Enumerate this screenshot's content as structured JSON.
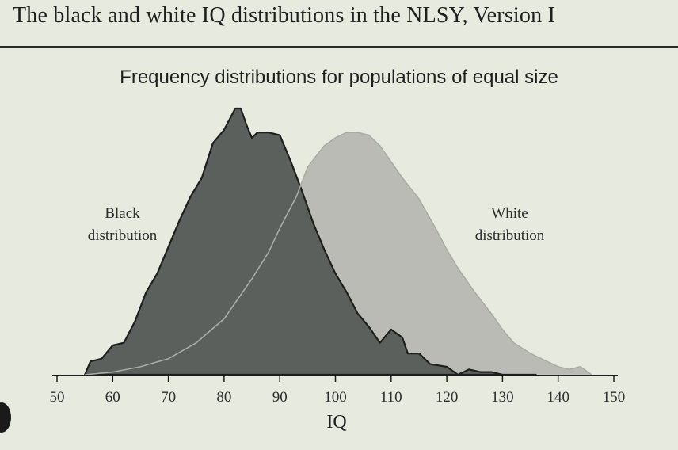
{
  "header": {
    "title": "The black and white IQ distributions in the NLSY, Version I"
  },
  "chart_data": {
    "type": "area",
    "title": "Frequency distributions for populations of equal size",
    "xlabel": "IQ",
    "ylabel": "",
    "xlim": [
      50,
      150
    ],
    "ylim": [
      0,
      1
    ],
    "x_ticks": [
      "50",
      "60",
      "70",
      "80",
      "90",
      "100",
      "110",
      "120",
      "130",
      "140",
      "150"
    ],
    "grid": false,
    "legend": "inline labels",
    "series": [
      {
        "name": "White distribution",
        "label_lines": [
          "White",
          "distribution"
        ],
        "color": "#b9bbb4",
        "x": [
          55,
          60,
          65,
          70,
          75,
          80,
          85,
          88,
          90,
          93,
          95,
          98,
          100,
          102,
          104,
          106,
          108,
          110,
          112,
          115,
          118,
          120,
          122,
          125,
          128,
          130,
          132,
          135,
          138,
          140,
          142,
          144,
          146
        ],
        "values": [
          0.0,
          0.01,
          0.03,
          0.06,
          0.12,
          0.21,
          0.36,
          0.46,
          0.55,
          0.67,
          0.78,
          0.86,
          0.89,
          0.91,
          0.91,
          0.9,
          0.86,
          0.8,
          0.74,
          0.66,
          0.55,
          0.47,
          0.4,
          0.31,
          0.23,
          0.17,
          0.12,
          0.08,
          0.05,
          0.03,
          0.02,
          0.03,
          0.0
        ]
      },
      {
        "name": "Black distribution",
        "label_lines": [
          "Black",
          "distribution"
        ],
        "color": "#5c605c",
        "x": [
          55,
          56,
          58,
          60,
          62,
          64,
          66,
          68,
          70,
          72,
          74,
          76,
          78,
          80,
          82,
          83,
          84,
          85,
          86,
          88,
          90,
          92,
          94,
          96,
          98,
          100,
          102,
          104,
          106,
          108,
          110,
          112,
          113,
          115,
          117,
          120,
          122,
          124,
          126,
          128,
          130,
          133,
          136
        ],
        "values": [
          0.0,
          0.05,
          0.06,
          0.11,
          0.12,
          0.2,
          0.31,
          0.38,
          0.48,
          0.58,
          0.67,
          0.74,
          0.87,
          0.92,
          1.0,
          1.0,
          0.94,
          0.89,
          0.91,
          0.91,
          0.9,
          0.8,
          0.69,
          0.57,
          0.47,
          0.38,
          0.31,
          0.23,
          0.18,
          0.12,
          0.17,
          0.14,
          0.08,
          0.08,
          0.04,
          0.03,
          0.0,
          0.02,
          0.01,
          0.01,
          0.0,
          0.0,
          0.0
        ]
      }
    ]
  }
}
